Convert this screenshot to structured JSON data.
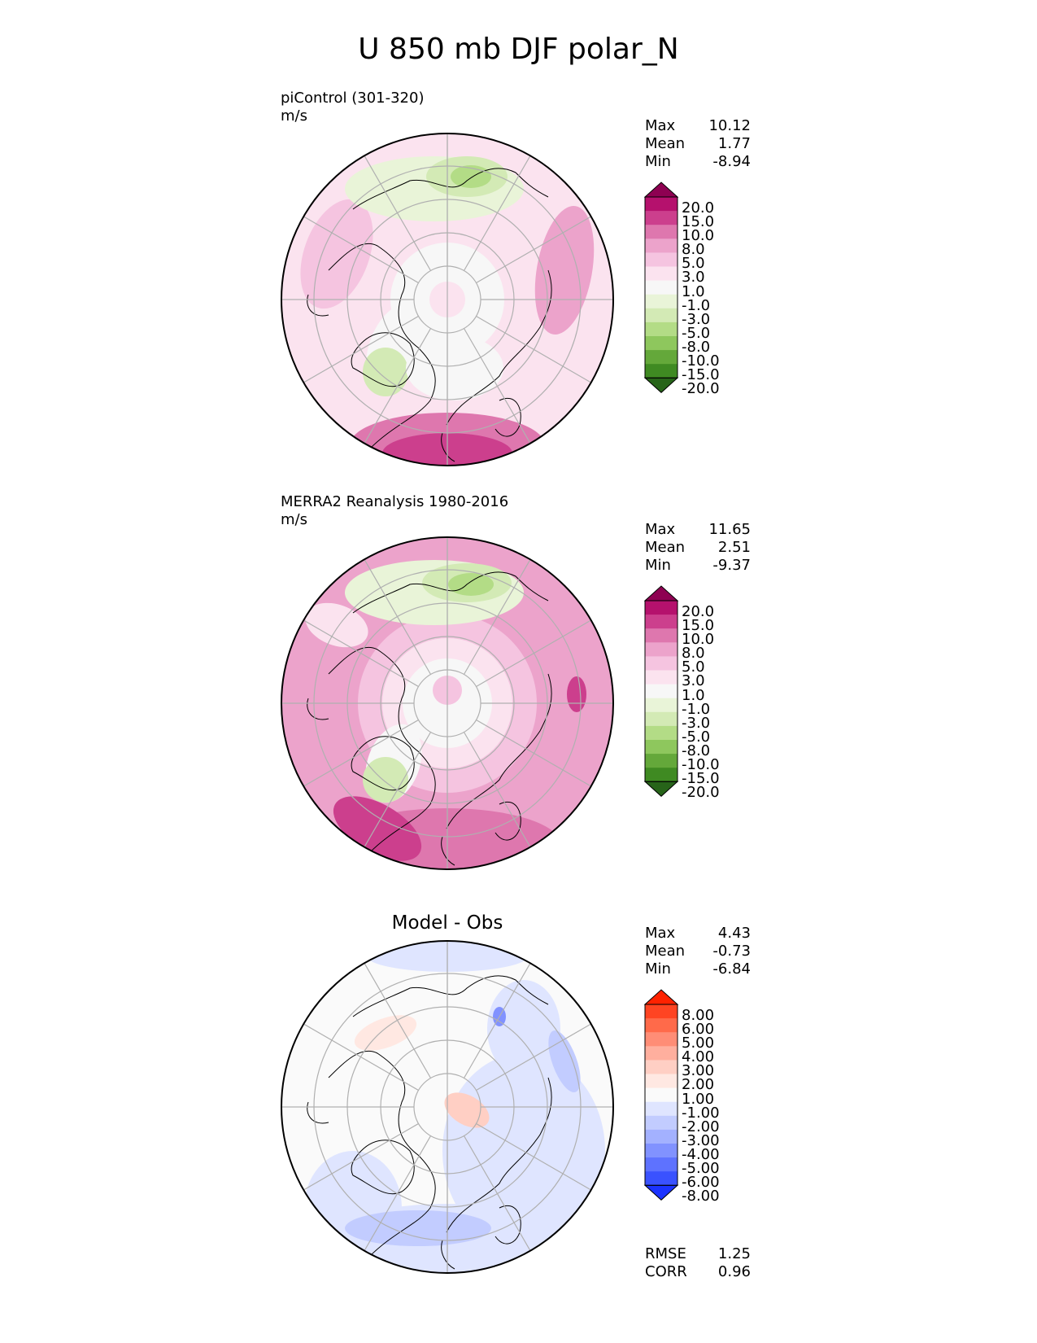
{
  "title": "U 850 mb DJF polar_N",
  "panels": [
    {
      "label": "piControl (301-320)",
      "units": "m/s",
      "stats": {
        "max_label": "Max",
        "max": "10.12",
        "mean_label": "Mean",
        "mean": "1.77",
        "min_label": "Min",
        "min": "-8.94"
      },
      "colorbar": {
        "ticks": [
          "20.0",
          "15.0",
          "10.0",
          "8.0",
          "5.0",
          "3.0",
          "1.0",
          "-1.0",
          "-3.0",
          "-5.0",
          "-8.0",
          "-10.0",
          "-15.0",
          "-20.0"
        ],
        "colors": [
          "#8e0152",
          "#b5116d",
          "#cc3f8d",
          "#de77ae",
          "#eca3cb",
          "#f5c4e0",
          "#fbe3ef",
          "#f7f7f7",
          "#e9f4d8",
          "#d3eab5",
          "#b3dc86",
          "#8ec75d",
          "#64a83a",
          "#3f8a22",
          "#276419"
        ]
      }
    },
    {
      "label": "MERRA2 Reanalysis 1980-2016",
      "units": "m/s",
      "stats": {
        "max_label": "Max",
        "max": "11.65",
        "mean_label": "Mean",
        "mean": "2.51",
        "min_label": "Min",
        "min": "-9.37"
      },
      "colorbar": {
        "ticks": [
          "20.0",
          "15.0",
          "10.0",
          "8.0",
          "5.0",
          "3.0",
          "1.0",
          "-1.0",
          "-3.0",
          "-5.0",
          "-8.0",
          "-10.0",
          "-15.0",
          "-20.0"
        ],
        "colors": [
          "#8e0152",
          "#b5116d",
          "#cc3f8d",
          "#de77ae",
          "#eca3cb",
          "#f5c4e0",
          "#fbe3ef",
          "#f7f7f7",
          "#e9f4d8",
          "#d3eab5",
          "#b3dc86",
          "#8ec75d",
          "#64a83a",
          "#3f8a22",
          "#276419"
        ]
      }
    },
    {
      "title": "Model - Obs",
      "stats": {
        "max_label": "Max",
        "max": "4.43",
        "mean_label": "Mean",
        "mean": "-0.73",
        "min_label": "Min",
        "min": "-6.84"
      },
      "metrics": {
        "rmse_label": "RMSE",
        "rmse": "1.25",
        "corr_label": "CORR",
        "corr": "0.96"
      },
      "colorbar": {
        "ticks": [
          "8.00",
          "6.00",
          "5.00",
          "4.00",
          "3.00",
          "2.00",
          "1.00",
          "-1.00",
          "-2.00",
          "-3.00",
          "-4.00",
          "-5.00",
          "-6.00",
          "-8.00"
        ],
        "colors": [
          "#ff2200",
          "#ff4422",
          "#ff6a4a",
          "#ff8d76",
          "#ffaf9e",
          "#ffcfc4",
          "#ffe8e2",
          "#fafafa",
          "#dfe5ff",
          "#c2ccff",
          "#a3b1ff",
          "#8192ff",
          "#5e72ff",
          "#3a52ff",
          "#1b33ff"
        ]
      }
    }
  ],
  "colors": {
    "grid": "#b0b0b0",
    "coast": "#000000"
  }
}
